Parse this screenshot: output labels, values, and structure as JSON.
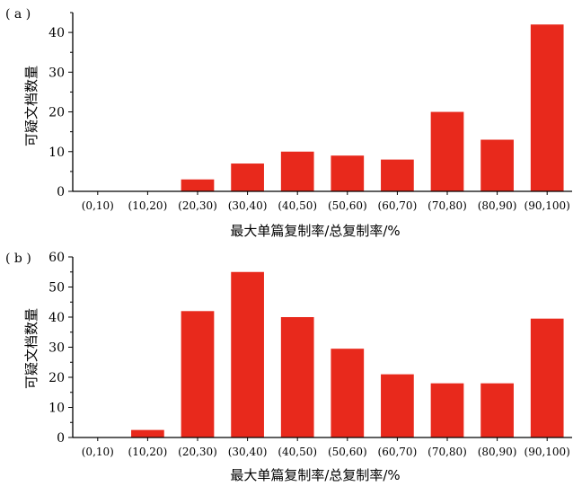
{
  "chart_data": [
    {
      "type": "bar",
      "panel_label": "( a )",
      "categories": [
        "(0,10)",
        "(10,20)",
        "(20,30)",
        "(30,40)",
        "(40,50)",
        "(50,60)",
        "(60,70)",
        "(70,80)",
        "(80,90)",
        "(90,100)"
      ],
      "values": [
        0,
        0,
        3,
        7,
        10,
        9,
        8,
        20,
        13,
        42
      ],
      "xlabel": "最大单篇复制率/总复制率/%",
      "ylabel": "可疑文档数量",
      "ylim": [
        0,
        45
      ],
      "yticks": [
        0,
        10,
        20,
        30,
        40
      ],
      "bar_color": "#e8291c"
    },
    {
      "type": "bar",
      "panel_label": "( b )",
      "categories": [
        "(0,10)",
        "(10,20)",
        "(20,30)",
        "(30,40)",
        "(40,50)",
        "(50,60)",
        "(60,70)",
        "(70,80)",
        "(80,90)",
        "(90,100)"
      ],
      "values": [
        0,
        2.5,
        42,
        55,
        40,
        29.5,
        21,
        18,
        18,
        39.5
      ],
      "xlabel": "最大单篇复制率/总复制率/%",
      "ylabel": "可疑文档数量",
      "ylim": [
        0,
        60
      ],
      "yticks": [
        0,
        10,
        20,
        30,
        40,
        50,
        60
      ],
      "bar_color": "#e8291c"
    }
  ]
}
